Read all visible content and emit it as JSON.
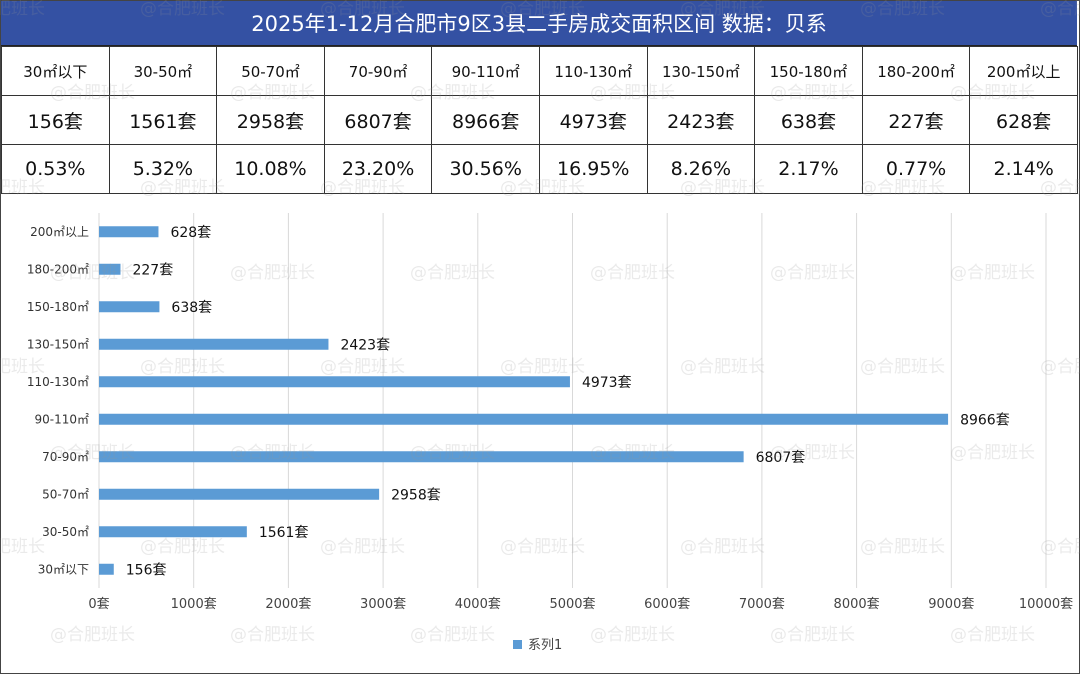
{
  "title": "2025年1-12月合肥市9区3县二手房成交面积区间 数据：贝系",
  "watermark": "@合肥班长",
  "table": {
    "headers": [
      "30㎡以下",
      "30-50㎡",
      "50-70㎡",
      "70-90㎡",
      "90-110㎡",
      "110-130㎡",
      "130-150㎡",
      "150-180㎡",
      "180-200㎡",
      "200㎡以上"
    ],
    "counts": [
      "156套",
      "1561套",
      "2958套",
      "6807套",
      "8966套",
      "4973套",
      "2423套",
      "638套",
      "227套",
      "628套"
    ],
    "percents": [
      "0.53%",
      "5.32%",
      "10.08%",
      "23.20%",
      "30.56%",
      "16.95%",
      "8.26%",
      "2.17%",
      "0.77%",
      "2.14%"
    ]
  },
  "chart_data": {
    "type": "bar",
    "orientation": "horizontal",
    "categories": [
      "30㎡以下",
      "30-50㎡",
      "50-70㎡",
      "70-90㎡",
      "90-110㎡",
      "110-130㎡",
      "130-150㎡",
      "150-180㎡",
      "180-200㎡",
      "200㎡以上"
    ],
    "series": [
      {
        "name": "系列1",
        "values": [
          156,
          1561,
          2958,
          6807,
          8966,
          4973,
          2423,
          638,
          227,
          628
        ],
        "data_labels": [
          "156套",
          "1561套",
          "2958套",
          "6807套",
          "8966套",
          "4973套",
          "2423套",
          "638套",
          "227套",
          "628套"
        ]
      }
    ],
    "xlim": [
      0,
      10000
    ],
    "x_ticks": [
      0,
      1000,
      2000,
      3000,
      4000,
      5000,
      6000,
      7000,
      8000,
      9000,
      10000
    ],
    "x_tick_labels": [
      "0套",
      "1000套",
      "2000套",
      "3000套",
      "4000套",
      "5000套",
      "6000套",
      "7000套",
      "8000套",
      "9000套",
      "10000套"
    ],
    "grid": "vertical",
    "legend": "bottom-center",
    "bar_color": "#5b9bd5"
  }
}
